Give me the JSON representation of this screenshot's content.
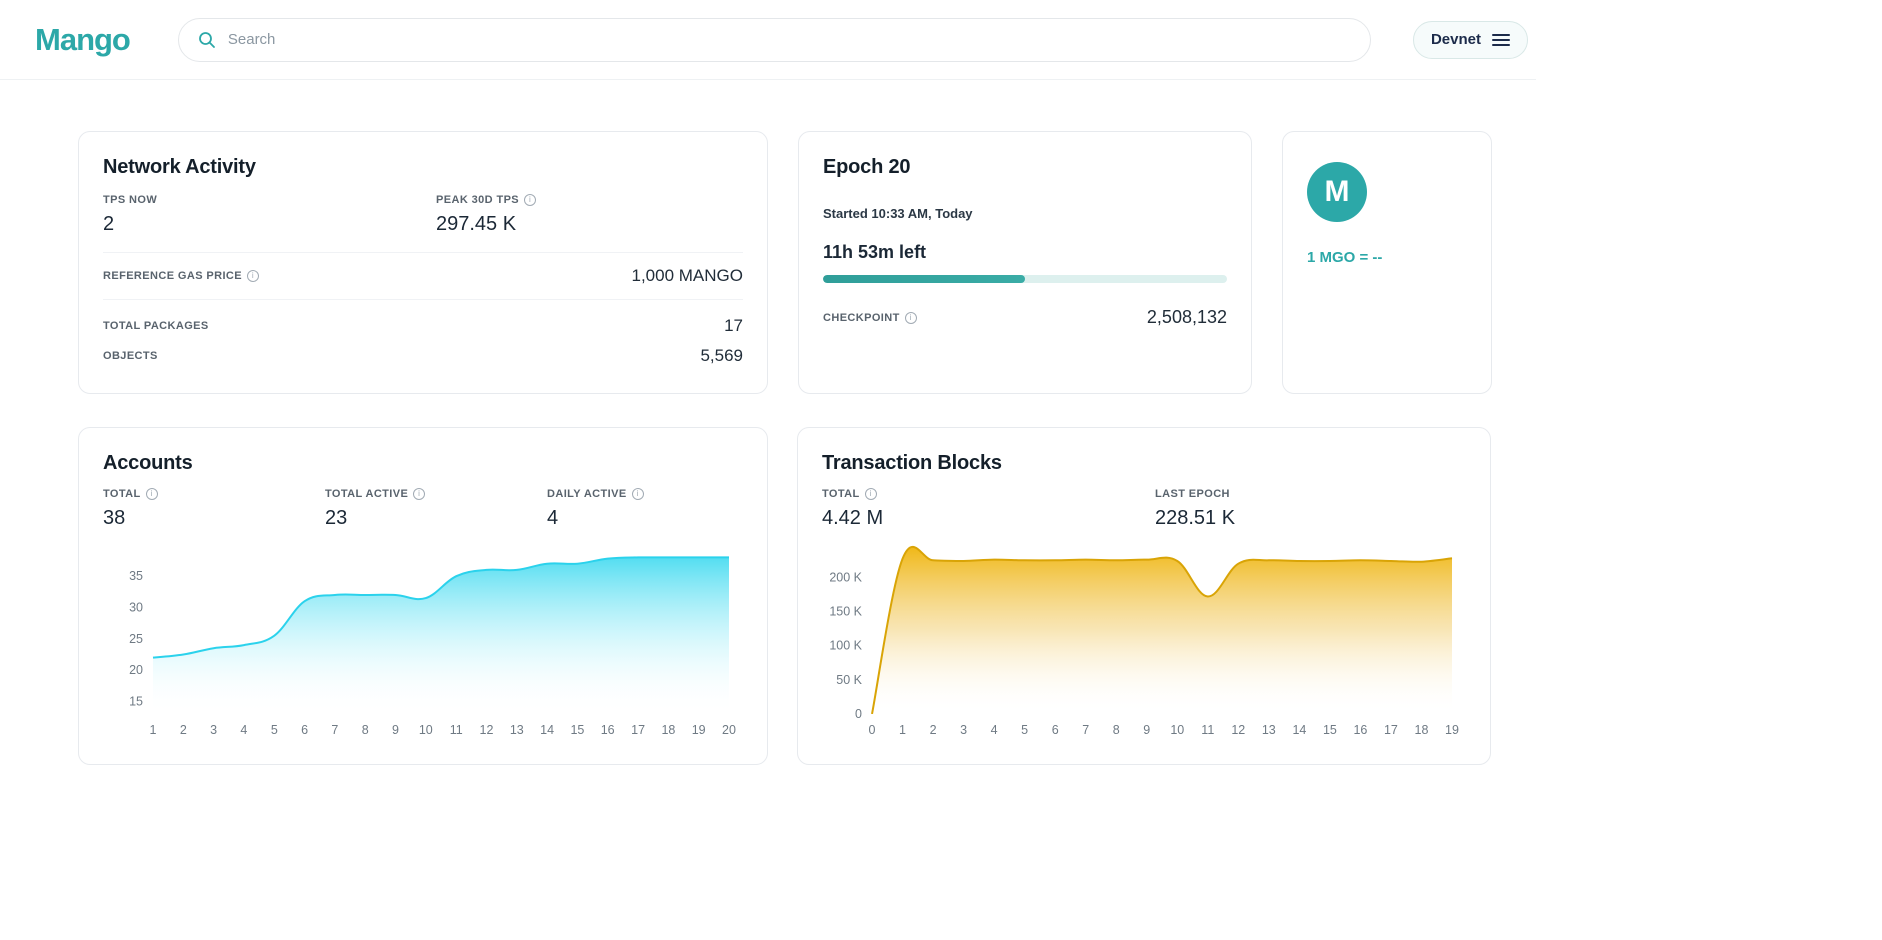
{
  "header": {
    "logo": "Mango",
    "search_placeholder": "Search",
    "network": "Devnet"
  },
  "cards": {
    "network_activity": {
      "title": "Network Activity",
      "tps_now_label": "TPS NOW",
      "tps_now_value": "2",
      "peak_tps_label": "PEAK 30D TPS",
      "peak_tps_value": "297.45 K",
      "gas_label": "REFERENCE GAS PRICE",
      "gas_value": "1,000 MANGO",
      "packages_label": "TOTAL PACKAGES",
      "packages_value": "17",
      "objects_label": "OBJECTS",
      "objects_value": "5,569"
    },
    "epoch": {
      "title": "Epoch 20",
      "started": "Started 10:33 AM, Today",
      "time_left": "11h 53m left",
      "progress_percent": 50,
      "checkpoint_label": "CHECKPOINT",
      "checkpoint_value": "2,508,132"
    },
    "price": {
      "logo_letter": "M",
      "rate": "1 MGO = --"
    },
    "accounts": {
      "title": "Accounts",
      "stats": [
        {
          "label": "TOTAL",
          "value": "38"
        },
        {
          "label": "TOTAL ACTIVE",
          "value": "23"
        },
        {
          "label": "DAILY ACTIVE",
          "value": "4"
        }
      ]
    },
    "transaction_blocks": {
      "title": "Transaction Blocks",
      "stats": [
        {
          "label": "TOTAL",
          "value": "4.42 M"
        },
        {
          "label": "LAST EPOCH",
          "value": "228.51 K"
        }
      ]
    }
  },
  "colors": {
    "brand_teal": "#2CA8A8",
    "accounts_line": "#2BD2EC",
    "transactions_line": "#D9A406",
    "progress_fill": "#2F9E99"
  },
  "chart_data": [
    {
      "type": "area",
      "title": "Accounts",
      "xlabel": "",
      "ylabel": "",
      "grid": false,
      "legend": false,
      "x": [
        "1",
        "2",
        "3",
        "4",
        "5",
        "6",
        "7",
        "8",
        "9",
        "10",
        "11",
        "12",
        "13",
        "14",
        "15",
        "16",
        "17",
        "18",
        "19",
        "20"
      ],
      "values": [
        22,
        22.5,
        23.5,
        24,
        25.5,
        31,
        32,
        32,
        32,
        31.5,
        35,
        36,
        36,
        37,
        37,
        37.8,
        38,
        38,
        38,
        38
      ],
      "ylim": [
        13,
        39.5
      ],
      "yticks": [
        {
          "v": 15,
          "label": "15"
        },
        {
          "v": 20,
          "label": "20"
        },
        {
          "v": 25,
          "label": "25"
        },
        {
          "v": 30,
          "label": "30"
        },
        {
          "v": 35,
          "label": "35"
        }
      ],
      "stroke": "#2BD2EC",
      "gradient": [
        [
          0,
          "#35D7EE",
          0.95
        ],
        [
          0.5,
          "#8FEAF7",
          0.45
        ],
        [
          1,
          "#FFFFFF",
          0
        ]
      ]
    },
    {
      "type": "area",
      "title": "Transaction Blocks",
      "xlabel": "",
      "ylabel": "",
      "grid": false,
      "legend": false,
      "x": [
        "0",
        "1",
        "2",
        "3",
        "4",
        "5",
        "6",
        "7",
        "8",
        "9",
        "10",
        "11",
        "12",
        "13",
        "14",
        "15",
        "16",
        "17",
        "18",
        "19"
      ],
      "values": [
        0,
        227000,
        225000,
        224000,
        226000,
        225000,
        225000,
        226000,
        225000,
        226000,
        224000,
        172000,
        220000,
        225000,
        224000,
        224000,
        225000,
        224000,
        223000,
        228000
      ],
      "ylim": [
        0,
        243000
      ],
      "yticks": [
        {
          "v": 0,
          "label": "0"
        },
        {
          "v": 50000,
          "label": "50 K"
        },
        {
          "v": 100000,
          "label": "100 K"
        },
        {
          "v": 150000,
          "label": "150 K"
        },
        {
          "v": 200000,
          "label": "200 K"
        }
      ],
      "stroke": "#D9A406",
      "gradient": [
        [
          0,
          "#EFB50E",
          0.95
        ],
        [
          0.5,
          "#F2CD6E",
          0.5
        ],
        [
          1,
          "#FFFFFF",
          0
        ]
      ]
    }
  ]
}
